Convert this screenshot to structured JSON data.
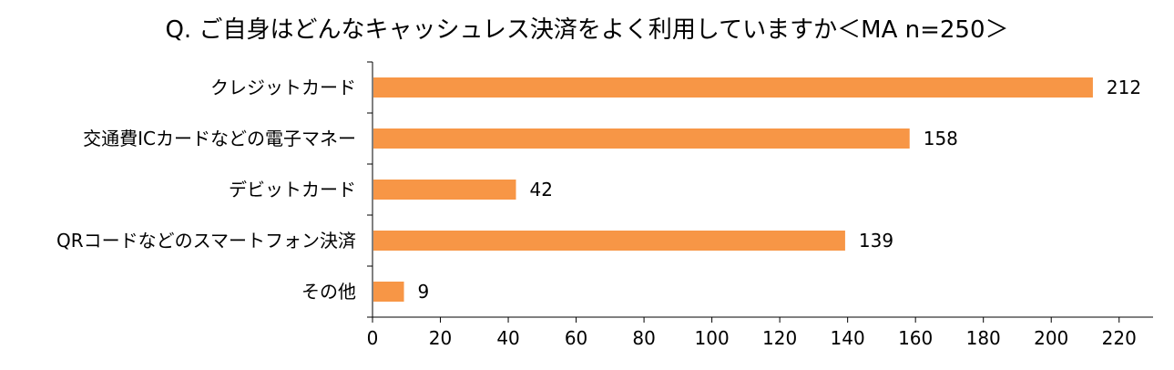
{
  "chart_data": {
    "type": "bar",
    "orientation": "horizontal",
    "title": "Q. ご自身はどんなキャッシュレス決済をよく利用していますか＜MA n=250＞",
    "categories": [
      "クレジットカード",
      "交通費ICカードなどの電子マネー",
      "デビットカード",
      "QRコードなどのスマートフォン決済",
      "その他"
    ],
    "values": [
      212,
      158,
      42,
      139,
      9
    ],
    "xlabel": "",
    "ylabel": "",
    "xlim": [
      0,
      230
    ],
    "xticks": [
      0,
      20,
      40,
      60,
      80,
      100,
      120,
      140,
      160,
      180,
      200,
      220
    ],
    "grid": false,
    "legend": "none",
    "bar_color": "#F79646"
  }
}
